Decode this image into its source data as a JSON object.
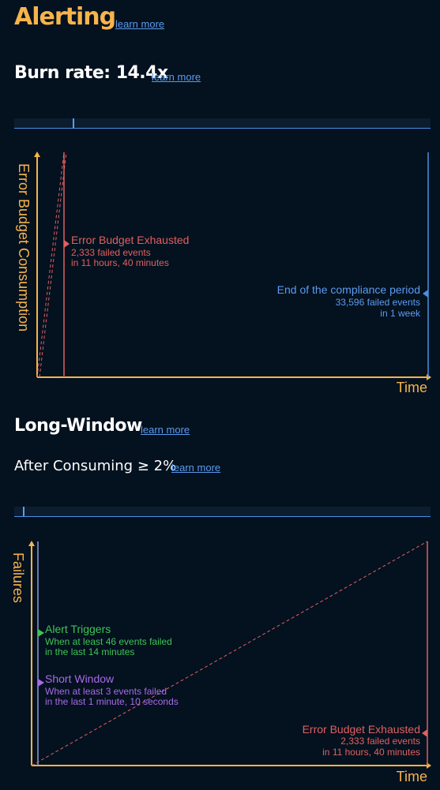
{
  "alerting": {
    "title": "Alerting",
    "learn_more": "learn more"
  },
  "burn_rate": {
    "title": "Burn rate: 14.4x",
    "learn_more": "learn more"
  },
  "chart1": {
    "y_axis_label": "Error Budget Consumption",
    "x_axis_label": "Time",
    "exhausted": {
      "title": "Error Budget Exhausted",
      "line1": "2,333 failed events",
      "line2": "in 11 hours, 40 minutes"
    },
    "compliance_end": {
      "title": "End of the compliance period",
      "line1": "33,596 failed events",
      "line2": "in 1 week"
    }
  },
  "long_window": {
    "title": "Long-Window",
    "learn_more": "learn more"
  },
  "after_consuming": {
    "title": "After Consuming ≥ 2%",
    "learn_more": "learn more"
  },
  "chart2": {
    "y_axis_label": "Failures",
    "x_axis_label": "Time",
    "alert_triggers": {
      "title": "Alert Triggers",
      "line1": "When at least 46 events failed",
      "line2": "in the last 14 minutes"
    },
    "short_window": {
      "title": "Short Window",
      "line1": "When at least 3 events failed",
      "line2": "in the last 1 minute, 10 seconds"
    },
    "exhausted": {
      "title": "Error Budget Exhausted",
      "line1": "2,333 failed events",
      "line2": "in 11 hours, 40 minutes"
    }
  },
  "sliders": {
    "burn_rate_level": 0.14,
    "consumption_level": 0.02
  },
  "colors": {
    "orange": "#f6b44b",
    "red": "#e0605f",
    "blue": "#4a8fe0",
    "green": "#3fc456",
    "purple": "#a86ae8",
    "background": "#04111f"
  }
}
